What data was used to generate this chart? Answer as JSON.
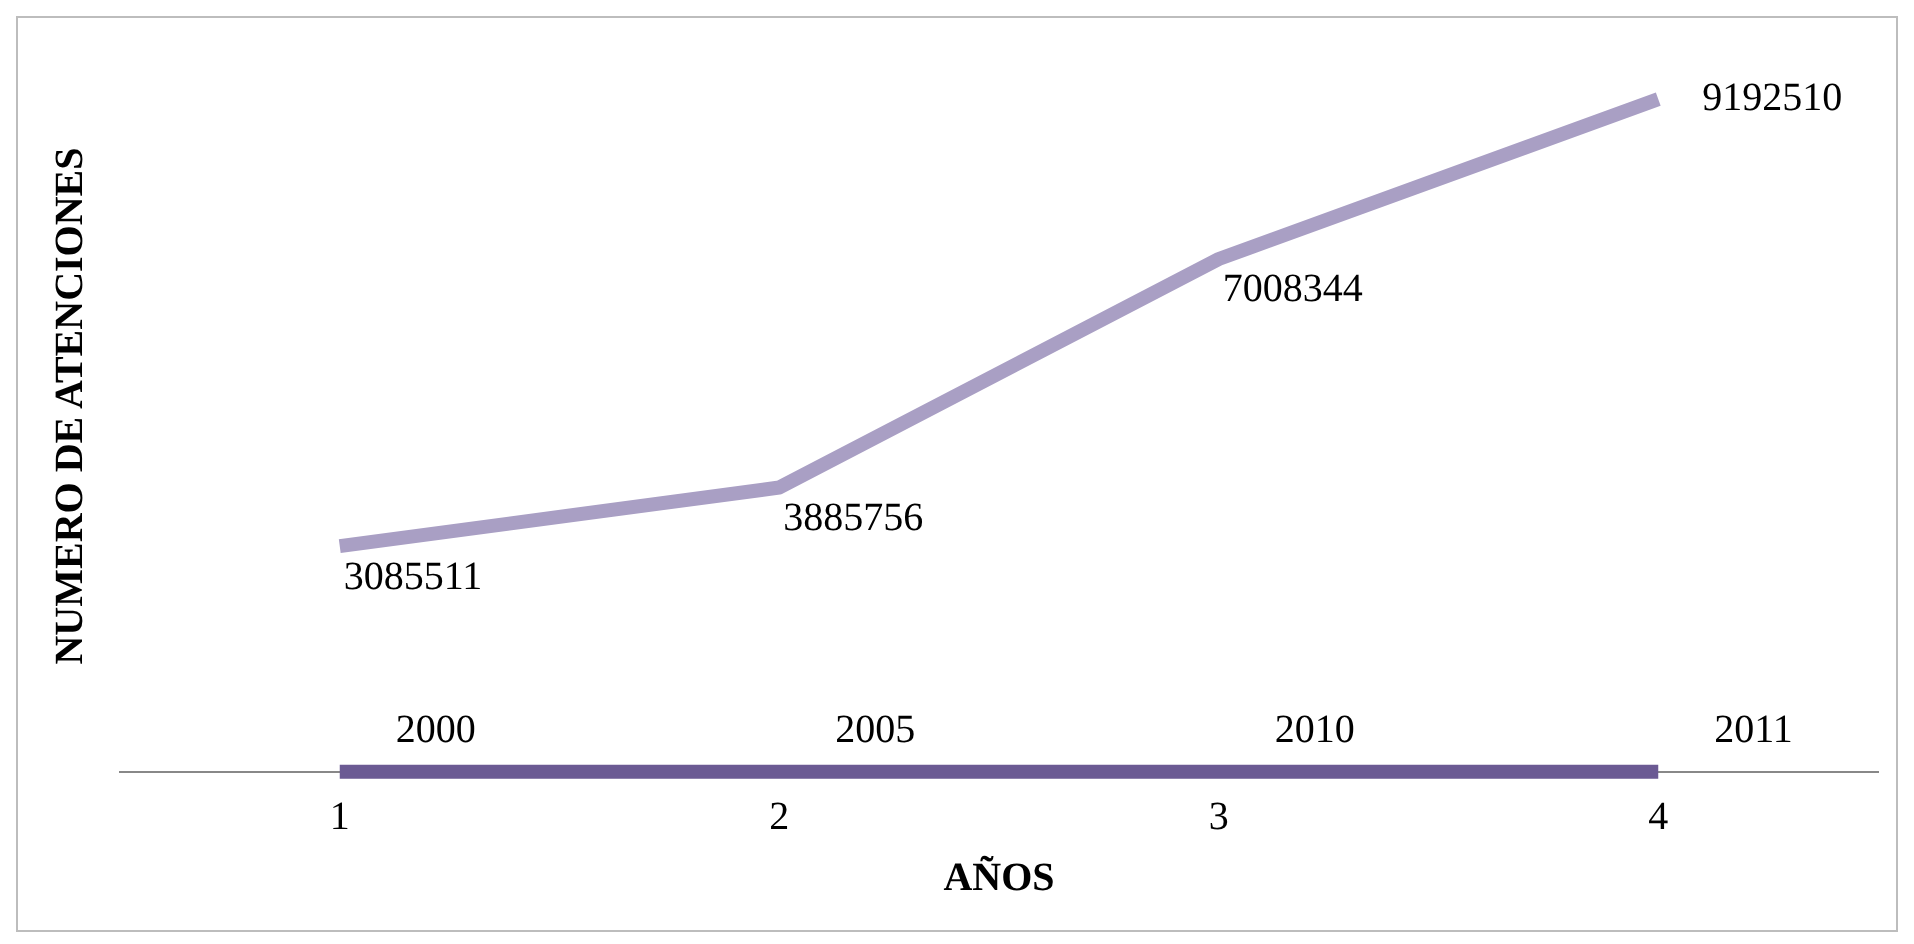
{
  "chart_data": {
    "type": "line",
    "xlabel": "AÑOS",
    "ylabel": "NUMERO DE ATENCIONES",
    "categories": [
      "1",
      "2",
      "3",
      "4"
    ],
    "series": [
      {
        "color": "#6b5a93",
        "values": [
          2000,
          2005,
          2010,
          2011
        ]
      },
      {
        "color": "#a99fc4",
        "values": [
          3085511,
          3885756,
          7008344,
          9192510
        ]
      }
    ],
    "tick_labels": "x",
    "data_labels": true,
    "legend": false,
    "grid": false,
    "marker": "none",
    "line_style": "solid"
  }
}
